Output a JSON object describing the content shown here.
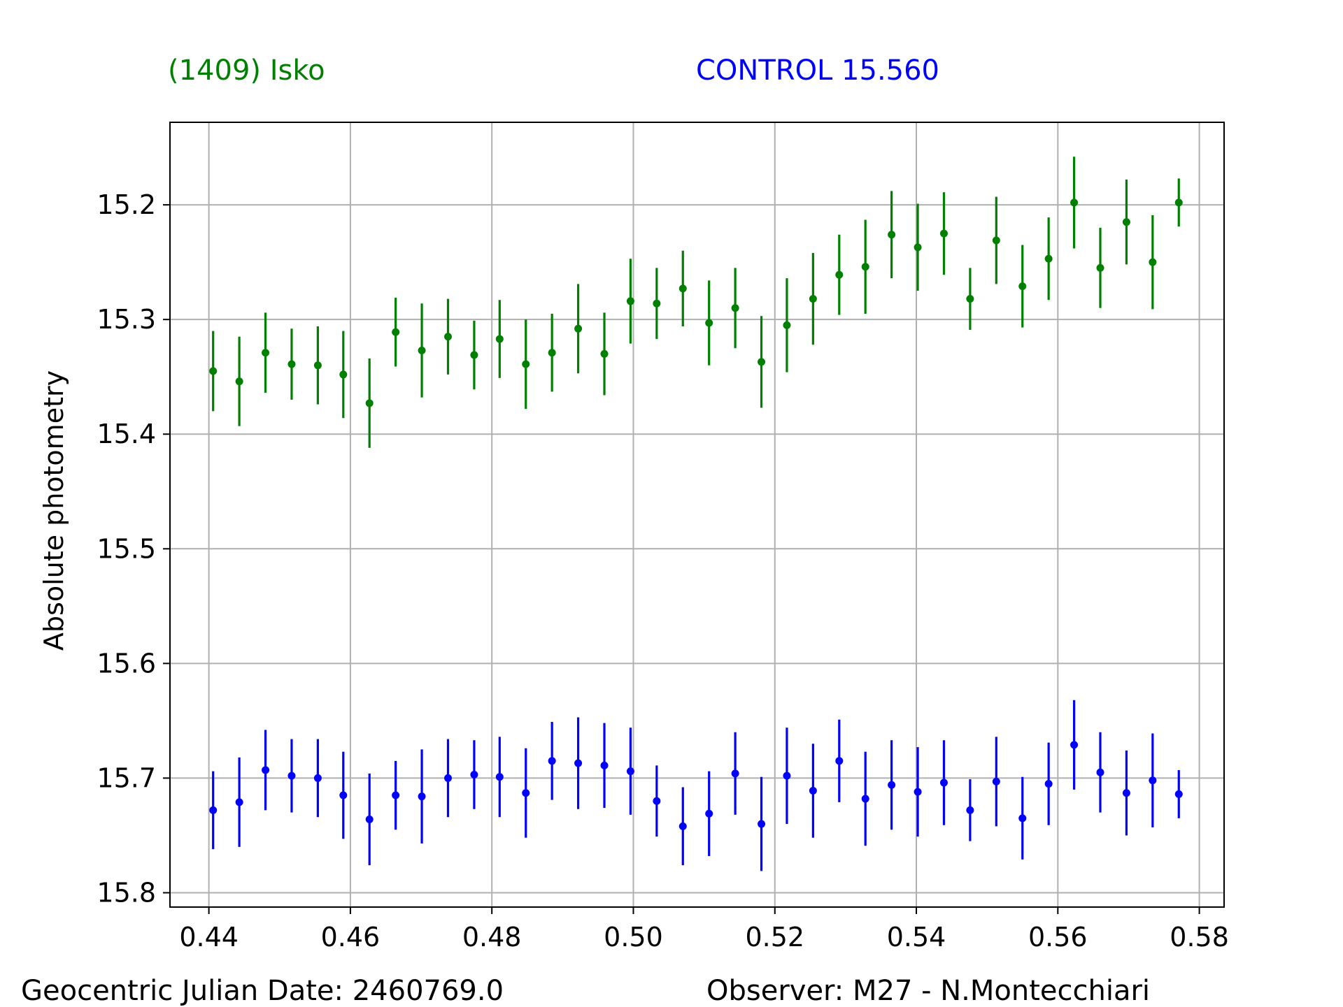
{
  "chart_data": {
    "type": "scatter",
    "xlabel": "",
    "ylabel": "Absolute photometry",
    "xlim": [
      0.4345,
      0.5835
    ],
    "ylim": [
      15.8125,
      15.128
    ],
    "y_inverted": true,
    "grid": true,
    "x_ticks": [
      "0.44",
      "0.46",
      "0.48",
      "0.50",
      "0.52",
      "0.54",
      "0.56",
      "0.58"
    ],
    "x_tick_values": [
      0.44,
      0.46,
      0.48,
      0.5,
      0.52,
      0.54,
      0.56,
      0.58
    ],
    "y_ticks": [
      "15.2",
      "15.3",
      "15.4",
      "15.5",
      "15.6",
      "15.7",
      "15.8"
    ],
    "y_tick_values": [
      15.2,
      15.3,
      15.4,
      15.5,
      15.6,
      15.7,
      15.8
    ],
    "x": [
      0.4406,
      0.4443,
      0.448,
      0.4517,
      0.4554,
      0.459,
      0.4627,
      0.4664,
      0.4701,
      0.4738,
      0.4775,
      0.4811,
      0.4848,
      0.4885,
      0.4922,
      0.4959,
      0.4996,
      0.5033,
      0.507,
      0.5107,
      0.5144,
      0.5181,
      0.5217,
      0.5254,
      0.5291,
      0.5328,
      0.5365,
      0.5402,
      0.5439,
      0.5476,
      0.5513,
      0.555,
      0.5587,
      0.5623,
      0.566,
      0.5697,
      0.5734,
      0.5771
    ],
    "series": [
      {
        "name": "(1409) Isko",
        "color": "#008000",
        "y": [
          15.345,
          15.354,
          15.329,
          15.339,
          15.34,
          15.348,
          15.373,
          15.311,
          15.327,
          15.315,
          15.331,
          15.317,
          15.339,
          15.329,
          15.308,
          15.33,
          15.284,
          15.286,
          15.273,
          15.303,
          15.29,
          15.337,
          15.305,
          15.282,
          15.261,
          15.254,
          15.226,
          15.237,
          15.225,
          15.282,
          15.231,
          15.271,
          15.247,
          15.198,
          15.255,
          15.215,
          15.25,
          15.198
        ],
        "err": [
          0.035,
          0.039,
          0.035,
          0.031,
          0.034,
          0.038,
          0.039,
          0.03,
          0.041,
          0.033,
          0.03,
          0.034,
          0.039,
          0.034,
          0.039,
          0.036,
          0.037,
          0.031,
          0.033,
          0.037,
          0.035,
          0.04,
          0.041,
          0.04,
          0.035,
          0.041,
          0.038,
          0.038,
          0.036,
          0.027,
          0.038,
          0.036,
          0.036,
          0.04,
          0.035,
          0.037,
          0.041,
          0.021
        ]
      },
      {
        "name": "CONTROL 15.560",
        "color": "#0000ff",
        "y": [
          15.728,
          15.721,
          15.693,
          15.698,
          15.7,
          15.715,
          15.736,
          15.715,
          15.716,
          15.7,
          15.697,
          15.699,
          15.713,
          15.685,
          15.687,
          15.689,
          15.694,
          15.72,
          15.742,
          15.731,
          15.696,
          15.74,
          15.698,
          15.711,
          15.685,
          15.718,
          15.706,
          15.712,
          15.704,
          15.728,
          15.703,
          15.735,
          15.705,
          15.671,
          15.695,
          15.713,
          15.702,
          15.714
        ],
        "err": [
          0.034,
          0.039,
          0.035,
          0.032,
          0.034,
          0.038,
          0.04,
          0.03,
          0.041,
          0.034,
          0.03,
          0.035,
          0.039,
          0.034,
          0.04,
          0.037,
          0.038,
          0.031,
          0.034,
          0.037,
          0.036,
          0.041,
          0.042,
          0.041,
          0.036,
          0.041,
          0.039,
          0.039,
          0.037,
          0.027,
          0.039,
          0.036,
          0.036,
          0.039,
          0.035,
          0.037,
          0.041,
          0.021
        ]
      }
    ]
  },
  "labels": {
    "series_a": "(1409) Isko",
    "series_b": "CONTROL 15.560",
    "footer_left": "Geocentric Julian Date: 2460769.0",
    "footer_right": "Observer: M27 - N.Montecchiari"
  },
  "colors": {
    "series_a": "#008000",
    "series_b": "#0000ff",
    "grid": "#b0b0b0",
    "axes": "#000000"
  }
}
